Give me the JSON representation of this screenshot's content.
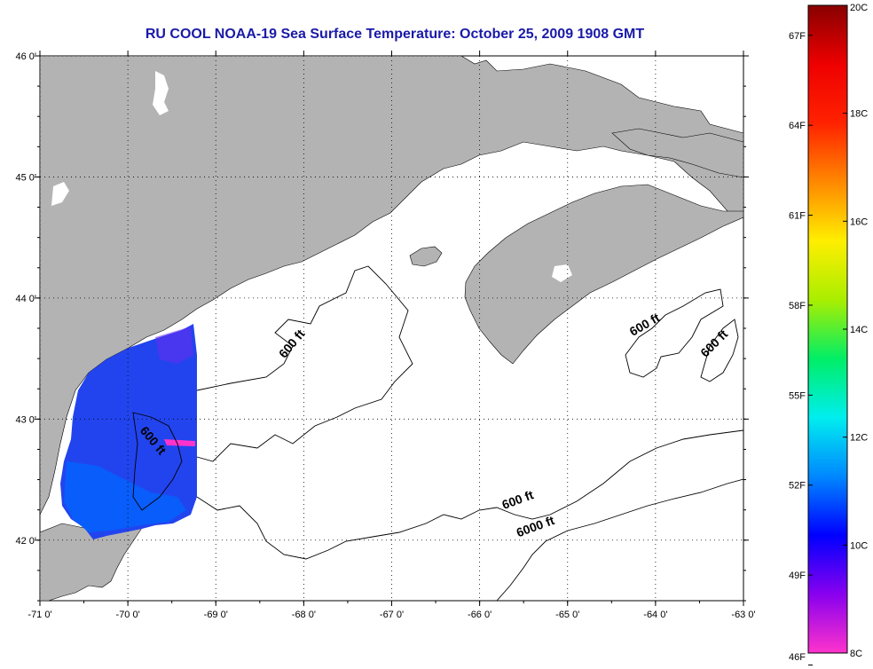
{
  "title": "RU COOL  NOAA-19  Sea Surface Temperature:  October 25, 2009 1908 GMT",
  "map": {
    "lon_range": [
      -71,
      -63
    ],
    "lat_range": [
      41.5,
      46
    ],
    "lon_ticks": [
      {
        "value": -71,
        "label": "-71 0'"
      },
      {
        "value": -70,
        "label": "-70 0'"
      },
      {
        "value": -69,
        "label": "-69 0'"
      },
      {
        "value": -68,
        "label": "-68 0'"
      },
      {
        "value": -67,
        "label": "-67 0'"
      },
      {
        "value": -66,
        "label": "-66 0'"
      },
      {
        "value": -65,
        "label": "-65 0'"
      },
      {
        "value": -64,
        "label": "-64 0'"
      },
      {
        "value": -63,
        "label": "-63 0'"
      }
    ],
    "lat_ticks": [
      {
        "value": 46,
        "label": "46 0'"
      },
      {
        "value": 45,
        "label": "45 0'"
      },
      {
        "value": 44,
        "label": "44 0'"
      },
      {
        "value": 43,
        "label": "43 0'"
      },
      {
        "value": 42,
        "label": "42 0'"
      }
    ],
    "grid": true,
    "land_color": "#b3b3b3",
    "water_color": "#ffffff",
    "contour_labels": [
      {
        "text": "600 ft",
        "lon": -68.1,
        "lat": 43.6,
        "rotate": -50
      },
      {
        "text": "600 ft",
        "lon": -69.75,
        "lat": 42.8,
        "rotate": 50
      },
      {
        "text": "600 ft",
        "lon": -64.1,
        "lat": 43.75,
        "rotate": -30
      },
      {
        "text": "600 ft",
        "lon": -63.3,
        "lat": 43.6,
        "rotate": -45
      },
      {
        "text": "600 ft",
        "lon": -65.55,
        "lat": 42.3,
        "rotate": -20
      },
      {
        "text": "6000 ft",
        "lon": -65.35,
        "lat": 42.08,
        "rotate": -20
      }
    ]
  },
  "colorbar": {
    "colors": [
      "#ff33cc",
      "#8800ee",
      "#0000ff",
      "#0088ff",
      "#00eeee",
      "#00ee66",
      "#aaee00",
      "#ffee00",
      "#ff8800",
      "#ff2200",
      "#ee0000",
      "#880000"
    ],
    "celsius_ticks": [
      {
        "value": 20,
        "label": "20C"
      },
      {
        "value": 18,
        "label": "18C"
      },
      {
        "value": 16,
        "label": "16C"
      },
      {
        "value": 14,
        "label": "14C"
      },
      {
        "value": 12,
        "label": "12C"
      },
      {
        "value": 10,
        "label": "10C"
      },
      {
        "value": 8,
        "label": "8C"
      }
    ],
    "fahrenheit_ticks": [
      {
        "value": 67,
        "label": "67F"
      },
      {
        "value": 64,
        "label": "64F"
      },
      {
        "value": 61,
        "label": "61F"
      },
      {
        "value": 58,
        "label": "58F"
      },
      {
        "value": 55,
        "label": "55F"
      },
      {
        "value": 52,
        "label": "52F"
      },
      {
        "value": 49,
        "label": "49F"
      },
      {
        "value": 46,
        "label": "46F"
      }
    ],
    "c_range": [
      8,
      20
    ]
  }
}
